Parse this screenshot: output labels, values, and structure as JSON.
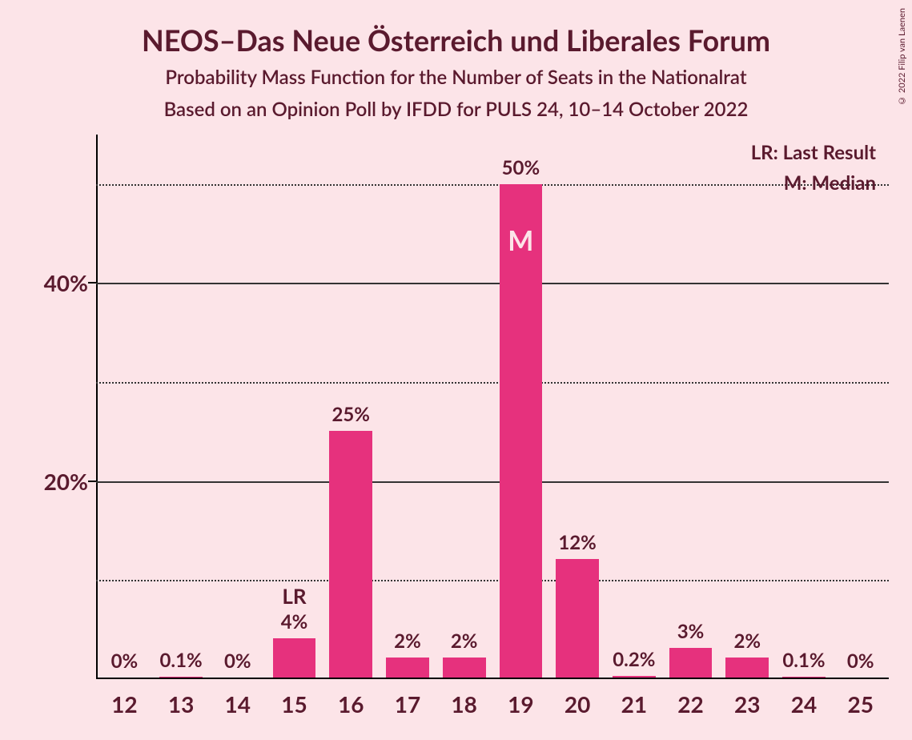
{
  "title": "NEOS–Das Neue Österreich und Liberales Forum",
  "subtitle1": "Probability Mass Function for the Number of Seats in the Nationalrat",
  "subtitle2": "Based on an Opinion Poll by IFDD for PULS 24, 10–14 October 2022",
  "copyright": "© 2022 Filip van Laenen",
  "legend": {
    "lr": "LR: Last Result",
    "m": "M: Median"
  },
  "chart": {
    "type": "bar",
    "background_color": "#fce4e8",
    "bar_color": "#e6317d",
    "text_color": "#5a1a2e",
    "grid_color": "#333333",
    "ylim_max_percent": 55,
    "y_major_ticks": [
      20,
      40
    ],
    "y_minor_ticks": [
      10,
      30,
      50
    ],
    "bar_width_ratio": 0.76,
    "categories": [
      12,
      13,
      14,
      15,
      16,
      17,
      18,
      19,
      20,
      21,
      22,
      23,
      24,
      25
    ],
    "values": [
      0,
      0.1,
      0,
      4,
      25,
      2,
      2,
      50,
      12,
      0.2,
      3,
      2,
      0.1,
      0
    ],
    "value_labels": [
      "0%",
      "0.1%",
      "0%",
      "4%",
      "25%",
      "2%",
      "2%",
      "50%",
      "12%",
      "0.2%",
      "3%",
      "2%",
      "0.1%",
      "0%"
    ],
    "last_result_index": 3,
    "last_result_label": "LR",
    "median_index": 7,
    "median_label": "M",
    "title_fontsize": 36,
    "subtitle_fontsize": 24,
    "axis_label_fontsize": 28,
    "value_label_fontsize": 24
  }
}
